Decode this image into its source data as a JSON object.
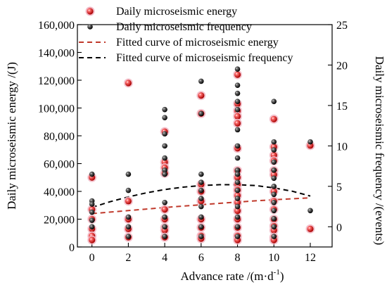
{
  "chart_data": {
    "type": "scatter",
    "xlabel": "Advance rate /(m·d",
    "xlabel_sup": "-1",
    "xlabel_close": ")",
    "ylabel_left": "Daily microseismic energy /(J)",
    "ylabel_right": "Daily microseismic frequency /(events)",
    "x_ticks": [
      "0",
      "2",
      "4",
      "6",
      "8",
      "10",
      "12"
    ],
    "y_left_ticks": [
      "0",
      "20,000",
      "40,000",
      "60,000",
      "80,000",
      "100,000",
      "120,000",
      "140,000",
      "160,000"
    ],
    "y_right_ticks": [
      "0",
      "5",
      "10",
      "15",
      "20",
      "25"
    ],
    "xlim": [
      -0.8,
      13.2
    ],
    "ylim_left": [
      0,
      160000
    ],
    "ylim_right": [
      -2.5,
      25
    ],
    "grid": false,
    "legend_position": "top",
    "legend": [
      {
        "label": "Daily microseismic energy",
        "marker": "red-sphere"
      },
      {
        "label": "Daily microseismic frequency",
        "marker": "black-sphere"
      },
      {
        "label": "Fitted curve of microseismic energy",
        "marker": "dashed-line",
        "color": "#c0392b"
      },
      {
        "label": "Fitted curve of microseismic frequency",
        "marker": "dashed-line",
        "color": "#000000"
      }
    ],
    "series": [
      {
        "name": "Daily microseismic energy",
        "axis": "left",
        "color": "#d42020",
        "points": [
          [
            0,
            50000
          ],
          [
            0,
            27000
          ],
          [
            0,
            20000
          ],
          [
            0,
            13000
          ],
          [
            0,
            8000
          ],
          [
            0,
            5000
          ],
          [
            2,
            118000
          ],
          [
            2,
            33000
          ],
          [
            2,
            20000
          ],
          [
            2,
            13000
          ],
          [
            2,
            7000
          ],
          [
            4,
            83000
          ],
          [
            4,
            61000
          ],
          [
            4,
            57000
          ],
          [
            4,
            53000
          ],
          [
            4,
            27000
          ],
          [
            4,
            20000
          ],
          [
            4,
            14000
          ],
          [
            4,
            12000
          ],
          [
            4,
            7000
          ],
          [
            6,
            109000
          ],
          [
            6,
            96000
          ],
          [
            6,
            45000
          ],
          [
            6,
            40000
          ],
          [
            6,
            33000
          ],
          [
            6,
            20000
          ],
          [
            6,
            14000
          ],
          [
            6,
            8000
          ],
          [
            6,
            6000
          ],
          [
            8,
            124000
          ],
          [
            8,
            103000
          ],
          [
            8,
            98000
          ],
          [
            8,
            94000
          ],
          [
            8,
            89000
          ],
          [
            8,
            71000
          ],
          [
            8,
            55000
          ],
          [
            8,
            50000
          ],
          [
            8,
            45000
          ],
          [
            8,
            41000
          ],
          [
            8,
            37000
          ],
          [
            8,
            32000
          ],
          [
            8,
            26000
          ],
          [
            8,
            20000
          ],
          [
            8,
            14000
          ],
          [
            8,
            8000
          ],
          [
            8,
            5000
          ],
          [
            10,
            92000
          ],
          [
            10,
            72000
          ],
          [
            10,
            66000
          ],
          [
            10,
            62000
          ],
          [
            10,
            55000
          ],
          [
            10,
            52000
          ],
          [
            10,
            40000
          ],
          [
            10,
            33000
          ],
          [
            10,
            27000
          ],
          [
            10,
            20000
          ],
          [
            10,
            15000
          ],
          [
            10,
            12000
          ],
          [
            10,
            7000
          ],
          [
            10,
            5000
          ],
          [
            12,
            73000
          ],
          [
            12,
            13000
          ]
        ]
      },
      {
        "name": "Daily microseismic frequency",
        "axis": "right",
        "color": "#111111",
        "points": [
          [
            0,
            6.5
          ],
          [
            0,
            3.2
          ],
          [
            0,
            2.8
          ],
          [
            0,
            1.8
          ],
          [
            0,
            0.8
          ],
          [
            0,
            0
          ],
          [
            2,
            6.5
          ],
          [
            2,
            4.5
          ],
          [
            2,
            1.2
          ],
          [
            2,
            0
          ],
          [
            2,
            -1.2
          ],
          [
            4,
            14.5
          ],
          [
            4,
            13.5
          ],
          [
            4,
            11.5
          ],
          [
            4,
            10
          ],
          [
            4,
            8.5
          ],
          [
            4,
            7
          ],
          [
            4,
            6.5
          ],
          [
            4,
            3
          ],
          [
            4,
            1.2
          ],
          [
            4,
            0
          ],
          [
            4,
            -1.2
          ],
          [
            6,
            18
          ],
          [
            6,
            14
          ],
          [
            6,
            6.5
          ],
          [
            6,
            5.5
          ],
          [
            6,
            4.5
          ],
          [
            6,
            3.5
          ],
          [
            6,
            2.5
          ],
          [
            6,
            1.2
          ],
          [
            6,
            0
          ],
          [
            6,
            -1.2
          ],
          [
            8,
            19.5
          ],
          [
            8,
            17.5
          ],
          [
            8,
            16.5
          ],
          [
            8,
            15.5
          ],
          [
            8,
            14.5
          ],
          [
            8,
            12
          ],
          [
            8,
            10
          ],
          [
            8,
            8.5
          ],
          [
            8,
            7
          ],
          [
            8,
            6.5
          ],
          [
            8,
            5.5
          ],
          [
            8,
            4.5
          ],
          [
            8,
            3.5
          ],
          [
            8,
            2.5
          ],
          [
            8,
            1.2
          ],
          [
            8,
            0
          ],
          [
            8,
            -1.2
          ],
          [
            10,
            15.5
          ],
          [
            10,
            10.5
          ],
          [
            10,
            9.5
          ],
          [
            10,
            8
          ],
          [
            10,
            7
          ],
          [
            10,
            6
          ],
          [
            10,
            5
          ],
          [
            10,
            4
          ],
          [
            10,
            3
          ],
          [
            10,
            2
          ],
          [
            10,
            1
          ],
          [
            10,
            0
          ],
          [
            10,
            -1.2
          ],
          [
            12,
            10.5
          ],
          [
            12,
            2
          ]
        ]
      }
    ],
    "fitted_curves": [
      {
        "name": "Fitted curve of microseismic energy",
        "axis": "left",
        "color": "#c0392b",
        "x": [
          0,
          1,
          2,
          3,
          4,
          5,
          6,
          7,
          8,
          9,
          10,
          11,
          12
        ],
        "y": [
          24000,
          25100,
          26200,
          27300,
          28400,
          29400,
          30400,
          31400,
          32300,
          33200,
          34000,
          34700,
          35400
        ]
      },
      {
        "name": "Fitted curve of microseismic frequency",
        "axis": "right",
        "color": "#000000",
        "x": [
          0,
          1,
          2,
          3,
          4,
          5,
          6,
          7,
          8,
          9,
          10,
          11,
          12
        ],
        "y": [
          2.4,
          3.1,
          3.7,
          4.2,
          4.6,
          4.9,
          5.1,
          5.2,
          5.2,
          5.1,
          4.8,
          4.4,
          3.8
        ]
      }
    ]
  }
}
